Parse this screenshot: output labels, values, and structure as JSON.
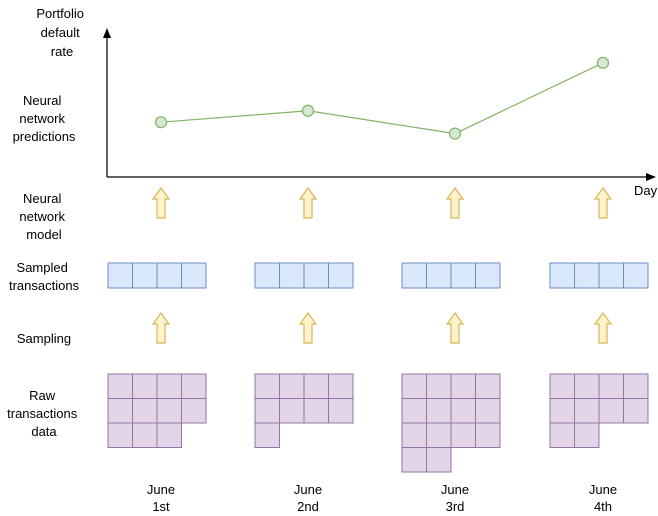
{
  "labels": {
    "portfolio_rate": [
      "Portfolio",
      "default",
      "rate"
    ],
    "nn_predictions": [
      "Neural",
      "network",
      "predictions"
    ],
    "nn_model": [
      "Neural",
      "network",
      "model"
    ],
    "sampled": [
      "Sampled",
      "transactions"
    ],
    "sampling": [
      "Sampling"
    ],
    "raw": [
      "Raw",
      "transactions",
      "data"
    ],
    "x_axis": "Day"
  },
  "days": [
    {
      "name": [
        "June",
        "1st"
      ],
      "raw_rows": [
        4,
        4,
        3
      ]
    },
    {
      "name": [
        "June",
        "2nd"
      ],
      "raw_rows": [
        4,
        4,
        1
      ]
    },
    {
      "name": [
        "June",
        "3rd"
      ],
      "raw_rows": [
        4,
        4,
        4,
        2
      ]
    },
    {
      "name": [
        "June",
        "4th"
      ],
      "raw_rows": [
        4,
        4,
        2
      ]
    }
  ],
  "chart_data": {
    "type": "line",
    "x": [
      "June 1st",
      "June 2nd",
      "June 3rd",
      "June 4th"
    ],
    "values": [
      0.48,
      0.58,
      0.38,
      1.0
    ],
    "ylim": [
      0,
      1.2
    ],
    "xlabel": "Day",
    "ylabel": "Portfolio default rate",
    "grid": false
  },
  "colors": {
    "line": "#82b366",
    "marker_fill": "#d5e8d4",
    "sample_fill": "#dae8fc",
    "sample_stroke": "#6c8ebf",
    "raw_fill": "#e1d5e7",
    "raw_stroke": "#9673a6",
    "arrow_fill": "#fff2cc",
    "arrow_stroke": "#d6b656"
  }
}
